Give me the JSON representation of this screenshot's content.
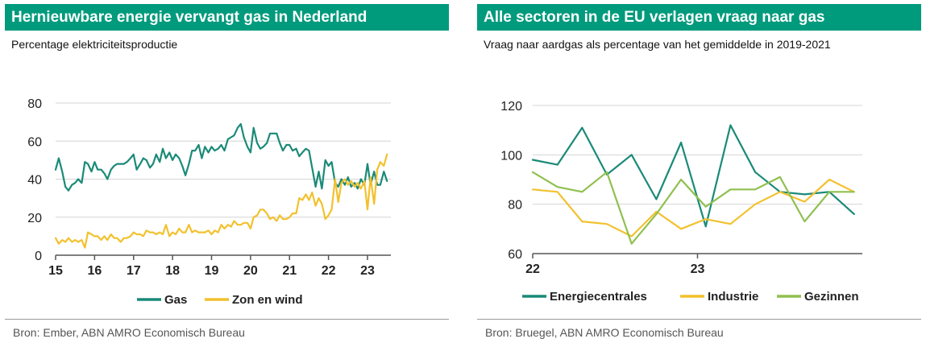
{
  "left": {
    "title": "Hernieuwbare energie vervangt gas in Nederland",
    "subtitle": "Percentage elektriciteitsproductie",
    "source": "Bron: Ember, ABN AMRO Economisch Bureau"
  },
  "right": {
    "title": "Alle sectoren in de EU verlagen vraag naar gas",
    "subtitle": "Vraag naar aardgas als percentage van het gemiddelde in 2019-2021",
    "source": "Bron: Bruegel, ABN AMRO Economisch Bureau"
  },
  "chart_data": [
    {
      "type": "line",
      "title": "Hernieuwbare energie vervangt gas in Nederland",
      "subtitle": "Percentage elektriciteitsproductie",
      "ylim": [
        0,
        80
      ],
      "yticks": [
        0,
        20,
        40,
        60,
        80
      ],
      "xlim": [
        2015,
        2023.6
      ],
      "xticks": [
        2015,
        2016,
        2017,
        2018,
        2019,
        2020,
        2021,
        2022,
        2023
      ],
      "xtick_labels": [
        "15",
        "16",
        "17",
        "18",
        "19",
        "20",
        "21",
        "22",
        "23"
      ],
      "grid": true,
      "legend": "bottom",
      "series": [
        {
          "name": "Gas",
          "color": "#1a8a78",
          "points": [
            [
              2015.0,
              45
            ],
            [
              2015.08,
              51
            ],
            [
              2015.17,
              44
            ],
            [
              2015.25,
              36
            ],
            [
              2015.33,
              34
            ],
            [
              2015.42,
              37
            ],
            [
              2015.5,
              38
            ],
            [
              2015.58,
              40
            ],
            [
              2015.67,
              38
            ],
            [
              2015.75,
              49
            ],
            [
              2015.83,
              48
            ],
            [
              2015.92,
              44
            ],
            [
              2016.0,
              49
            ],
            [
              2016.08,
              45
            ],
            [
              2016.17,
              45
            ],
            [
              2016.25,
              43
            ],
            [
              2016.33,
              40
            ],
            [
              2016.42,
              45
            ],
            [
              2016.5,
              47
            ],
            [
              2016.58,
              48
            ],
            [
              2016.67,
              48
            ],
            [
              2016.75,
              48
            ],
            [
              2016.83,
              49
            ],
            [
              2016.92,
              51
            ],
            [
              2017.0,
              53
            ],
            [
              2017.08,
              45
            ],
            [
              2017.17,
              48
            ],
            [
              2017.25,
              51
            ],
            [
              2017.33,
              50
            ],
            [
              2017.42,
              46
            ],
            [
              2017.5,
              48
            ],
            [
              2017.58,
              53
            ],
            [
              2017.67,
              49
            ],
            [
              2017.75,
              56
            ],
            [
              2017.83,
              51
            ],
            [
              2017.92,
              54
            ],
            [
              2018.0,
              50
            ],
            [
              2018.08,
              53
            ],
            [
              2018.17,
              51
            ],
            [
              2018.25,
              47
            ],
            [
              2018.33,
              42
            ],
            [
              2018.42,
              48
            ],
            [
              2018.5,
              55
            ],
            [
              2018.58,
              55
            ],
            [
              2018.67,
              58
            ],
            [
              2018.75,
              51
            ],
            [
              2018.83,
              57
            ],
            [
              2018.92,
              54
            ],
            [
              2019.0,
              57
            ],
            [
              2019.08,
              55
            ],
            [
              2019.17,
              56
            ],
            [
              2019.25,
              58
            ],
            [
              2019.33,
              55
            ],
            [
              2019.42,
              61
            ],
            [
              2019.5,
              62
            ],
            [
              2019.58,
              63
            ],
            [
              2019.67,
              67
            ],
            [
              2019.75,
              69
            ],
            [
              2019.83,
              62
            ],
            [
              2019.92,
              57
            ],
            [
              2020.0,
              54
            ],
            [
              2020.08,
              67
            ],
            [
              2020.17,
              59
            ],
            [
              2020.25,
              56
            ],
            [
              2020.33,
              57
            ],
            [
              2020.42,
              59
            ],
            [
              2020.5,
              64
            ],
            [
              2020.58,
              64
            ],
            [
              2020.67,
              64
            ],
            [
              2020.75,
              59
            ],
            [
              2020.83,
              55
            ],
            [
              2020.92,
              58
            ],
            [
              2021.0,
              58
            ],
            [
              2021.08,
              55
            ],
            [
              2021.17,
              56
            ],
            [
              2021.25,
              52
            ],
            [
              2021.33,
              54
            ],
            [
              2021.42,
              56
            ],
            [
              2021.5,
              55
            ],
            [
              2021.58,
              46
            ],
            [
              2021.67,
              36
            ],
            [
              2021.75,
              44
            ],
            [
              2021.83,
              35
            ],
            [
              2021.92,
              50
            ],
            [
              2022.0,
              47
            ],
            [
              2022.08,
              49
            ],
            [
              2022.17,
              38
            ],
            [
              2022.25,
              36
            ],
            [
              2022.33,
              40
            ],
            [
              2022.42,
              37
            ],
            [
              2022.5,
              41
            ],
            [
              2022.58,
              36
            ],
            [
              2022.67,
              38
            ],
            [
              2022.75,
              35
            ],
            [
              2022.83,
              40
            ],
            [
              2022.92,
              37
            ],
            [
              2023.0,
              48
            ],
            [
              2023.08,
              37
            ],
            [
              2023.17,
              44
            ],
            [
              2023.25,
              37
            ],
            [
              2023.33,
              37
            ],
            [
              2023.42,
              44
            ],
            [
              2023.5,
              39
            ]
          ]
        },
        {
          "name": "Zon en wind",
          "color": "#f2c12e",
          "points": [
            [
              2015.0,
              9
            ],
            [
              2015.08,
              6
            ],
            [
              2015.17,
              8
            ],
            [
              2015.25,
              7
            ],
            [
              2015.33,
              9
            ],
            [
              2015.42,
              7
            ],
            [
              2015.5,
              8
            ],
            [
              2015.58,
              7
            ],
            [
              2015.67,
              8
            ],
            [
              2015.75,
              4
            ],
            [
              2015.83,
              12
            ],
            [
              2015.92,
              11
            ],
            [
              2016.0,
              10
            ],
            [
              2016.08,
              10
            ],
            [
              2016.17,
              8
            ],
            [
              2016.25,
              10
            ],
            [
              2016.33,
              8
            ],
            [
              2016.42,
              11
            ],
            [
              2016.5,
              9
            ],
            [
              2016.58,
              9
            ],
            [
              2016.67,
              7
            ],
            [
              2016.75,
              9
            ],
            [
              2016.83,
              9
            ],
            [
              2016.92,
              10
            ],
            [
              2017.0,
              12
            ],
            [
              2017.08,
              11
            ],
            [
              2017.17,
              11
            ],
            [
              2017.25,
              10
            ],
            [
              2017.33,
              13
            ],
            [
              2017.42,
              12
            ],
            [
              2017.5,
              12
            ],
            [
              2017.58,
              11
            ],
            [
              2017.67,
              12
            ],
            [
              2017.75,
              11
            ],
            [
              2017.83,
              16
            ],
            [
              2017.92,
              10
            ],
            [
              2018.0,
              12
            ],
            [
              2018.08,
              11
            ],
            [
              2018.17,
              14
            ],
            [
              2018.25,
              12
            ],
            [
              2018.33,
              12
            ],
            [
              2018.42,
              16
            ],
            [
              2018.5,
              12
            ],
            [
              2018.58,
              13
            ],
            [
              2018.67,
              12
            ],
            [
              2018.75,
              12
            ],
            [
              2018.83,
              12
            ],
            [
              2018.92,
              13
            ],
            [
              2019.0,
              11
            ],
            [
              2019.08,
              13
            ],
            [
              2019.17,
              12
            ],
            [
              2019.25,
              16
            ],
            [
              2019.33,
              14
            ],
            [
              2019.42,
              16
            ],
            [
              2019.5,
              15
            ],
            [
              2019.58,
              18
            ],
            [
              2019.67,
              16
            ],
            [
              2019.75,
              16
            ],
            [
              2019.83,
              17
            ],
            [
              2019.92,
              17
            ],
            [
              2020.0,
              14
            ],
            [
              2020.08,
              20
            ],
            [
              2020.17,
              21
            ],
            [
              2020.25,
              24
            ],
            [
              2020.33,
              24
            ],
            [
              2020.42,
              22
            ],
            [
              2020.5,
              19
            ],
            [
              2020.58,
              20
            ],
            [
              2020.67,
              18
            ],
            [
              2020.75,
              21
            ],
            [
              2020.83,
              19
            ],
            [
              2020.92,
              19
            ],
            [
              2021.0,
              20
            ],
            [
              2021.08,
              22
            ],
            [
              2021.17,
              22
            ],
            [
              2021.25,
              30
            ],
            [
              2021.33,
              29
            ],
            [
              2021.42,
              32
            ],
            [
              2021.5,
              29
            ],
            [
              2021.58,
              33
            ],
            [
              2021.67,
              26
            ],
            [
              2021.75,
              30
            ],
            [
              2021.83,
              27
            ],
            [
              2021.92,
              19
            ],
            [
              2022.0,
              21
            ],
            [
              2022.08,
              24
            ],
            [
              2022.17,
              40
            ],
            [
              2022.25,
              28
            ],
            [
              2022.33,
              38
            ],
            [
              2022.42,
              40
            ],
            [
              2022.5,
              37
            ],
            [
              2022.58,
              39
            ],
            [
              2022.67,
              36
            ],
            [
              2022.75,
              38
            ],
            [
              2022.83,
              35
            ],
            [
              2022.92,
              39
            ],
            [
              2023.0,
              24
            ],
            [
              2023.08,
              41
            ],
            [
              2023.17,
              27
            ],
            [
              2023.25,
              45
            ],
            [
              2023.33,
              49
            ],
            [
              2023.42,
              47
            ],
            [
              2023.5,
              53
            ]
          ]
        }
      ]
    },
    {
      "type": "line",
      "title": "Alle sectoren in de EU verlagen vraag naar gas",
      "subtitle": "Vraag naar aardgas als percentage van het gemiddelde in 2019-2021",
      "ylim": [
        60,
        120
      ],
      "yticks": [
        60,
        80,
        100,
        120
      ],
      "xlim": [
        0,
        20
      ],
      "xticks": [
        0,
        10
      ],
      "xtick_labels": [
        "22",
        "23"
      ],
      "grid": true,
      "legend": "bottom",
      "series": [
        {
          "name": "Energiecentrales",
          "color": "#1a8a78",
          "points": [
            [
              0,
              98
            ],
            [
              1.5,
              96
            ],
            [
              3,
              111
            ],
            [
              4.5,
              92
            ],
            [
              6,
              100
            ],
            [
              7.5,
              82
            ],
            [
              9,
              105
            ],
            [
              10.5,
              71
            ],
            [
              12,
              112
            ],
            [
              13.5,
              93
            ],
            [
              15,
              85
            ],
            [
              16.5,
              84
            ],
            [
              18,
              85
            ],
            [
              19.5,
              76
            ]
          ]
        },
        {
          "name": "Industrie",
          "color": "#f2c12e",
          "points": [
            [
              0,
              86
            ],
            [
              1.5,
              85
            ],
            [
              3,
              73
            ],
            [
              4.5,
              72
            ],
            [
              6,
              67
            ],
            [
              7.5,
              77
            ],
            [
              9,
              70
            ],
            [
              10.5,
              74
            ],
            [
              12,
              72
            ],
            [
              13.5,
              80
            ],
            [
              15,
              85
            ],
            [
              16.5,
              81
            ],
            [
              18,
              90
            ],
            [
              19.5,
              85
            ]
          ]
        },
        {
          "name": "Gezinnen",
          "color": "#8fc04f",
          "points": [
            [
              0,
              93
            ],
            [
              1.5,
              87
            ],
            [
              3,
              85
            ],
            [
              4.5,
              93
            ],
            [
              6,
              64
            ],
            [
              7.5,
              76
            ],
            [
              9,
              90
            ],
            [
              10.5,
              79
            ],
            [
              12,
              86
            ],
            [
              13.5,
              86
            ],
            [
              15,
              91
            ],
            [
              16.5,
              73
            ],
            [
              18,
              85
            ],
            [
              19.5,
              85
            ]
          ]
        }
      ]
    }
  ]
}
